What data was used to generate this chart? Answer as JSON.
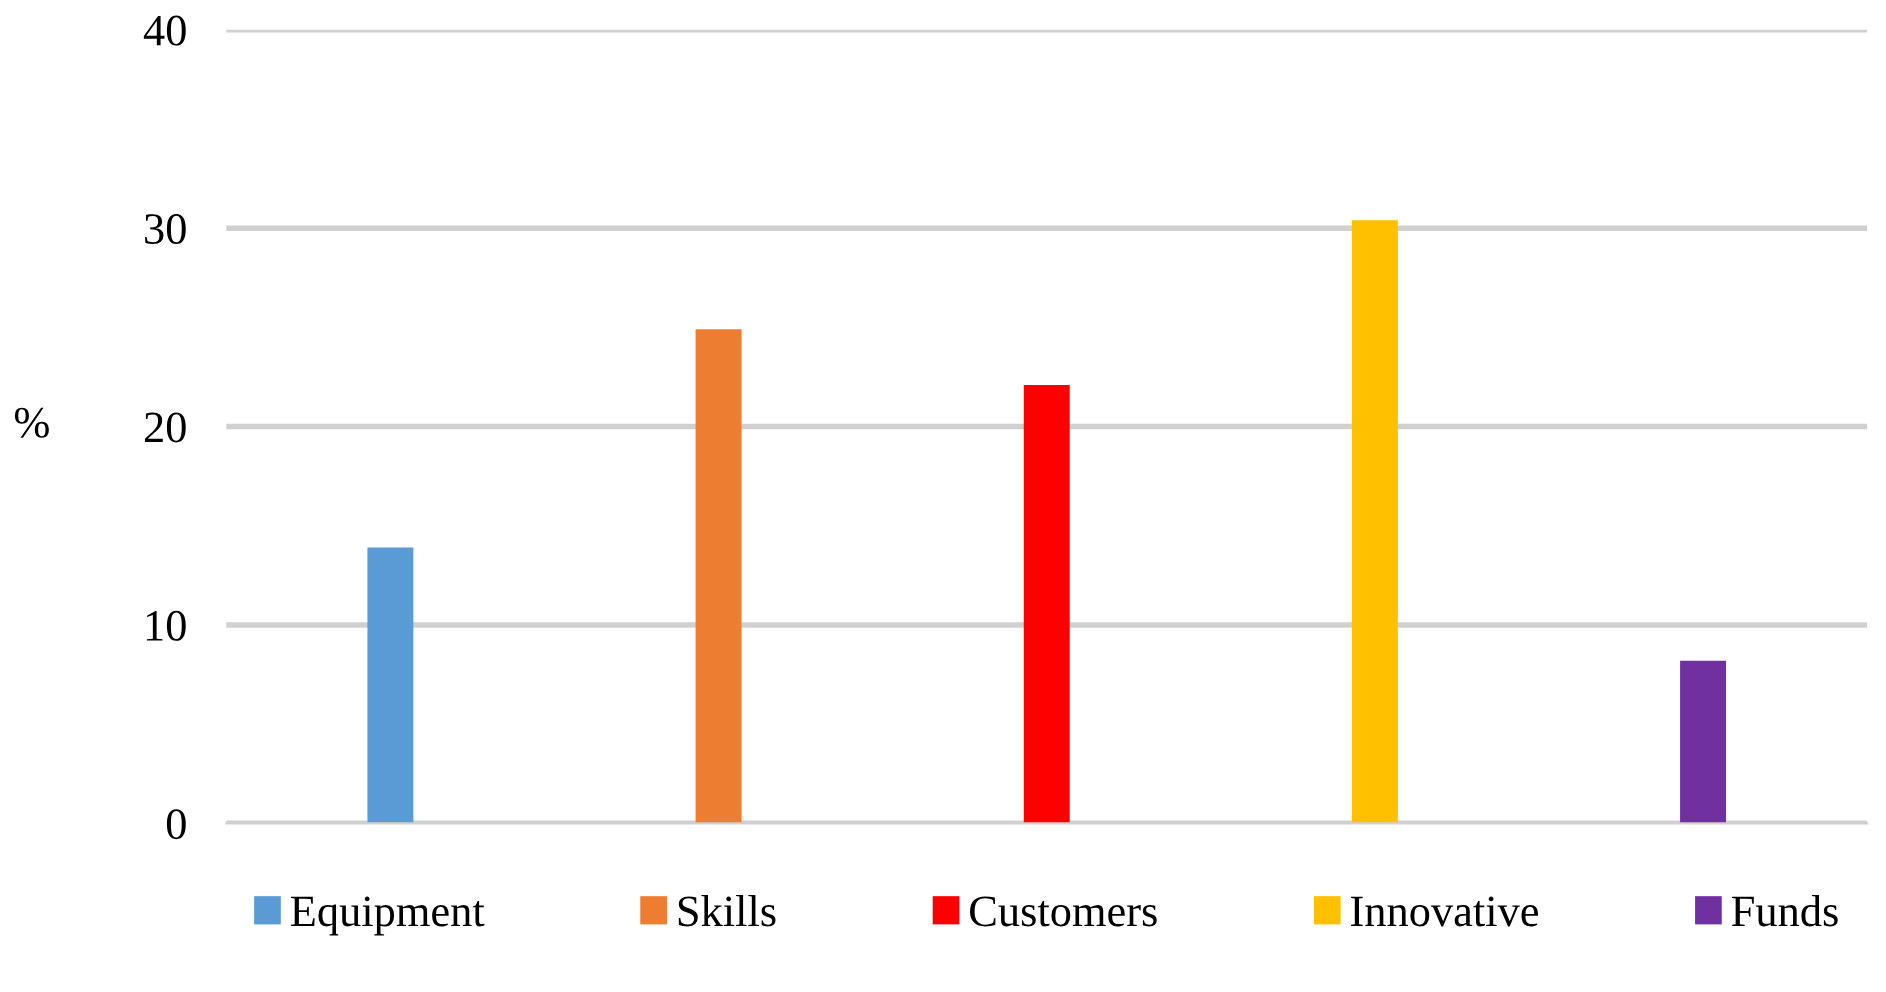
{
  "chart_data": {
    "type": "bar",
    "ylabel": "%",
    "categories": [
      null,
      null,
      null,
      null,
      null
    ],
    "series": [
      {
        "name": "Equipment",
        "color": "#5b9bd5",
        "values": [
          13.9,
          null,
          null,
          null,
          null
        ]
      },
      {
        "name": "Skills",
        "color": "#ed7d31",
        "values": [
          null,
          24.9,
          null,
          null,
          null
        ]
      },
      {
        "name": "Customers",
        "color": "#ff0000",
        "values": [
          null,
          null,
          22.1,
          null,
          null
        ]
      },
      {
        "name": "Innovative",
        "color": "#ffc000",
        "values": [
          null,
          null,
          null,
          30.4,
          null
        ]
      },
      {
        "name": "Funds",
        "color": "#7030a0",
        "values": [
          null,
          null,
          null,
          null,
          8.2
        ]
      }
    ],
    "ylim": [
      0,
      40
    ],
    "yticks": [
      0,
      10,
      20,
      30,
      40
    ],
    "grid": "y",
    "legend": "bottom"
  }
}
